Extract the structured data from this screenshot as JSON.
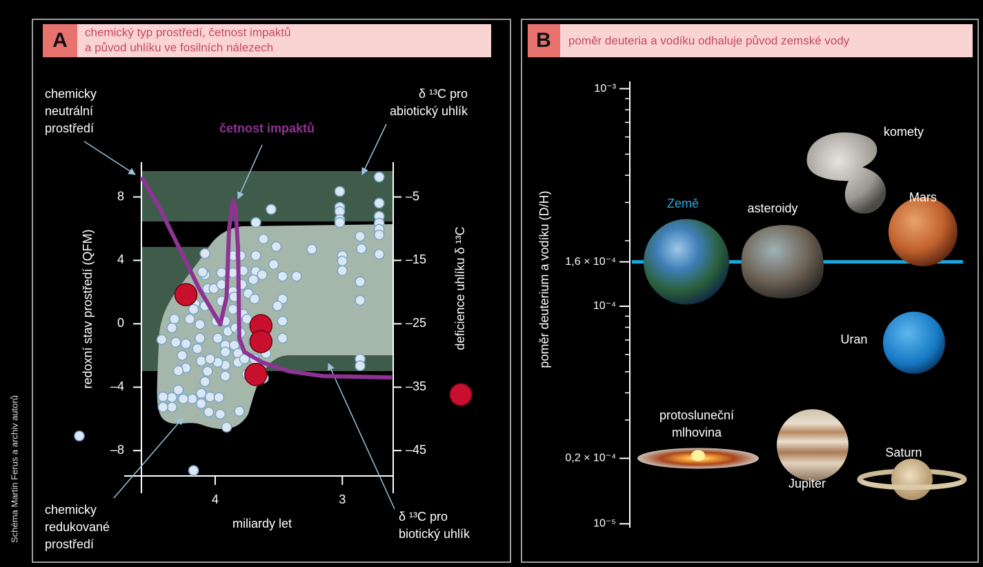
{
  "credit": "Schéma Martin Ferus a archiv autorů",
  "chart_data": [
    {
      "type": "scatter",
      "panel": "A",
      "title": [
        "chemický typ prostředí, četnost impaktů",
        "a původ uhlíku ve fosilních nálezech"
      ],
      "x_label": "miliardy let",
      "xlim": [
        4.58,
        2.6
      ],
      "xticks": [
        4,
        3
      ],
      "ylim": [
        -9.6,
        10.2
      ],
      "yticks": [
        {
          "value": -8,
          "label": "–8"
        },
        {
          "value": -4,
          "label": "–4"
        },
        0,
        4,
        8
      ],
      "y2lim": [
        -49,
        0.5
      ],
      "y2ticks": [
        {
          "value": -45,
          "label": "–45"
        },
        {
          "value": -35,
          "label": "–35"
        },
        {
          "value": -25,
          "label": "–25"
        },
        {
          "value": -15,
          "label": "–15"
        },
        {
          "value": -5,
          "label": "–5"
        }
      ],
      "annotations": [
        {
          "lines": [
            "chemicky",
            "neutrální",
            "prostředí"
          ]
        },
        {
          "lines": [
            "δ ¹³C pro",
            "abiotický uhlík"
          ]
        },
        {
          "lines": [
            "chemicky",
            "redukované",
            "prostředí"
          ]
        },
        {
          "lines": [
            "δ ¹³C pro",
            "biotický uhlík"
          ]
        }
      ],
      "series": [
        {
          "name": "redoxní stav prostředí (QFM)",
          "mark": "point",
          "color": "#dbe8f4",
          "x": [
            2.71,
            3.02,
            3.02,
            3.02,
            3.02,
            3.02,
            2.71,
            2.71,
            2.71,
            2.71,
            2.71,
            2.71,
            2.86,
            2.85,
            3.0,
            3.0,
            3.0,
            2.86,
            2.86,
            2.86,
            2.86,
            3.56,
            3.68,
            3.62,
            3.68,
            3.52,
            3.54,
            3.47,
            3.36,
            3.24,
            3.68,
            3.63,
            3.7,
            3.47,
            3.51,
            3.47,
            3.47,
            3.61,
            3.6,
            3.62,
            3.75,
            4.08,
            4.08,
            4.06,
            4.16,
            4.08,
            4.01,
            4.12,
            4.12,
            4.14,
            4.11,
            4.06,
            4.08,
            4.11,
            4.11,
            4.05,
            4.04,
            3.97,
            3.96,
            3.91,
            3.81,
            4.18,
            4.25,
            4.34,
            4.34,
            4.41,
            4.41,
            4.17,
            4.23,
            4.26,
            4.23,
            4.29,
            4.29,
            4.42,
            4.32,
            4.34,
            4.31,
            4.2,
            4.17,
            4.1,
            3.99,
            3.98,
            3.92,
            3.9,
            3.92,
            3.92,
            3.92,
            3.92,
            3.98,
            4.04,
            3.86,
            3.86,
            3.86,
            3.86,
            3.85,
            3.84,
            3.85,
            3.82,
            3.82,
            3.8,
            3.78,
            3.95,
            3.95,
            3.95,
            3.79,
            3.78,
            3.8,
            3.74,
            3.69,
            3.75,
            3.7,
            3.69,
            3.77
          ],
          "values": [
            9.26,
            8.35,
            7.35,
            7.09,
            6.57,
            6.39,
            7.61,
            6.78,
            6.35,
            5.96,
            5.61,
            4.39,
            5.52,
            4.74,
            4.3,
            3.96,
            3.35,
            2.65,
            1.48,
            -2.22,
            -2.65,
            7.22,
            6.39,
            5.35,
            4.3,
            4.87,
            3.74,
            3.0,
            3.0,
            4.7,
            3.3,
            3.09,
            2.78,
            1.57,
            1.13,
            0.17,
            -0.91,
            -0.91,
            -1.87,
            -3.43,
            -3.17,
            4.43,
            3.09,
            2.22,
            1.26,
            1.13,
            2.22,
            -0.04,
            -0.91,
            -1.57,
            -2.35,
            -3.0,
            -3.65,
            -4.39,
            -5.04,
            -5.57,
            -4.61,
            -4.65,
            -5.7,
            -6.52,
            -5.52,
            -4.74,
            -4.74,
            -4.65,
            -5.26,
            -5.26,
            -4.61,
            -9.26,
            -1.26,
            -2.0,
            -2.78,
            -2.96,
            -4.17,
            -1.0,
            0.3,
            -0.26,
            -1.17,
            0.3,
            0.91,
            3.26,
            0.17,
            -0.91,
            0.17,
            -0.48,
            -1.35,
            -1.78,
            -2.61,
            -3.3,
            -2.43,
            -2.22,
            4.3,
            3.22,
            2.04,
            0.91,
            1.7,
            -0.26,
            -1.35,
            -1.87,
            -2.43,
            -0.57,
            0.61,
            3.22,
            2.48,
            1.43,
            2.48,
            3.35,
            4.3,
            1.91,
            1.57,
            0.3,
            -1.13,
            -2.22,
            -2.22
          ]
        },
        {
          "name": "deficience uhlíku δ ¹³C",
          "mark": "point",
          "axis": "y2",
          "color": "#c8102e",
          "x": [
            4.23,
            3.64,
            3.64,
            3.68
          ],
          "values": [
            -20.4,
            -25.3,
            -27.8,
            -33.0
          ]
        },
        {
          "name": "četnost impaktů",
          "mark": "line",
          "color": "#8e3394",
          "x": [
            4.58,
            4.44,
            4.28,
            4.12,
            3.96,
            3.91,
            3.89,
            3.86,
            3.84,
            3.82,
            3.81,
            3.77,
            3.63,
            3.42,
            3.15,
            2.61
          ],
          "values": [
            9.26,
            7.35,
            4.74,
            2.13,
            -0.04,
            1.7,
            6.04,
            7.78,
            7.35,
            4.74,
            -0.91,
            -1.78,
            -2.43,
            -3.0,
            -3.3,
            -3.39
          ]
        }
      ]
    },
    {
      "type": "strip",
      "panel": "B",
      "title": "poměr deuteria a vodíku odhaluje původ zemské vody",
      "y_label": "poměr deuterium a vodíku (D/H)",
      "ylog": true,
      "ylim": [
        9.6e-06,
        0.00108
      ],
      "yticks": [
        {
          "value": 1e-05,
          "label": "10⁻⁵"
        },
        {
          "value": 2e-05,
          "label": "0,2 × 10⁻⁴"
        },
        {
          "value": 0.0001,
          "label": "10⁻⁴"
        },
        {
          "value": 0.00016,
          "label": "1,6 × 10⁻⁴"
        },
        {
          "value": 0.001,
          "label": "10⁻³"
        }
      ],
      "minor_yticks": [
        3e-05,
        4e-05,
        5e-05,
        6e-05,
        7e-05,
        8e-05,
        9e-05,
        0.0002,
        0.0003,
        0.0004,
        0.0005,
        0.0006,
        0.0007,
        0.0008,
        0.0009
      ],
      "reference_color": "#19a7e0",
      "categories": [
        "Země",
        "asteroidy",
        "komety",
        "Mars",
        "Uran",
        "Jupiter",
        "Saturn",
        [
          "protosluneční",
          "mlhovina"
        ]
      ],
      "values": [
        0.00016,
        0.00016,
        0.00042,
        0.00022,
        6.8e-05,
        2.3e-05,
        1.6e-05,
        2e-05
      ],
      "label_colors": [
        "#2aa7dc",
        "#ffffff",
        "#ffffff",
        "#ffffff",
        "#ffffff",
        "#ffffff",
        "#ffffff",
        "#ffffff"
      ]
    }
  ]
}
